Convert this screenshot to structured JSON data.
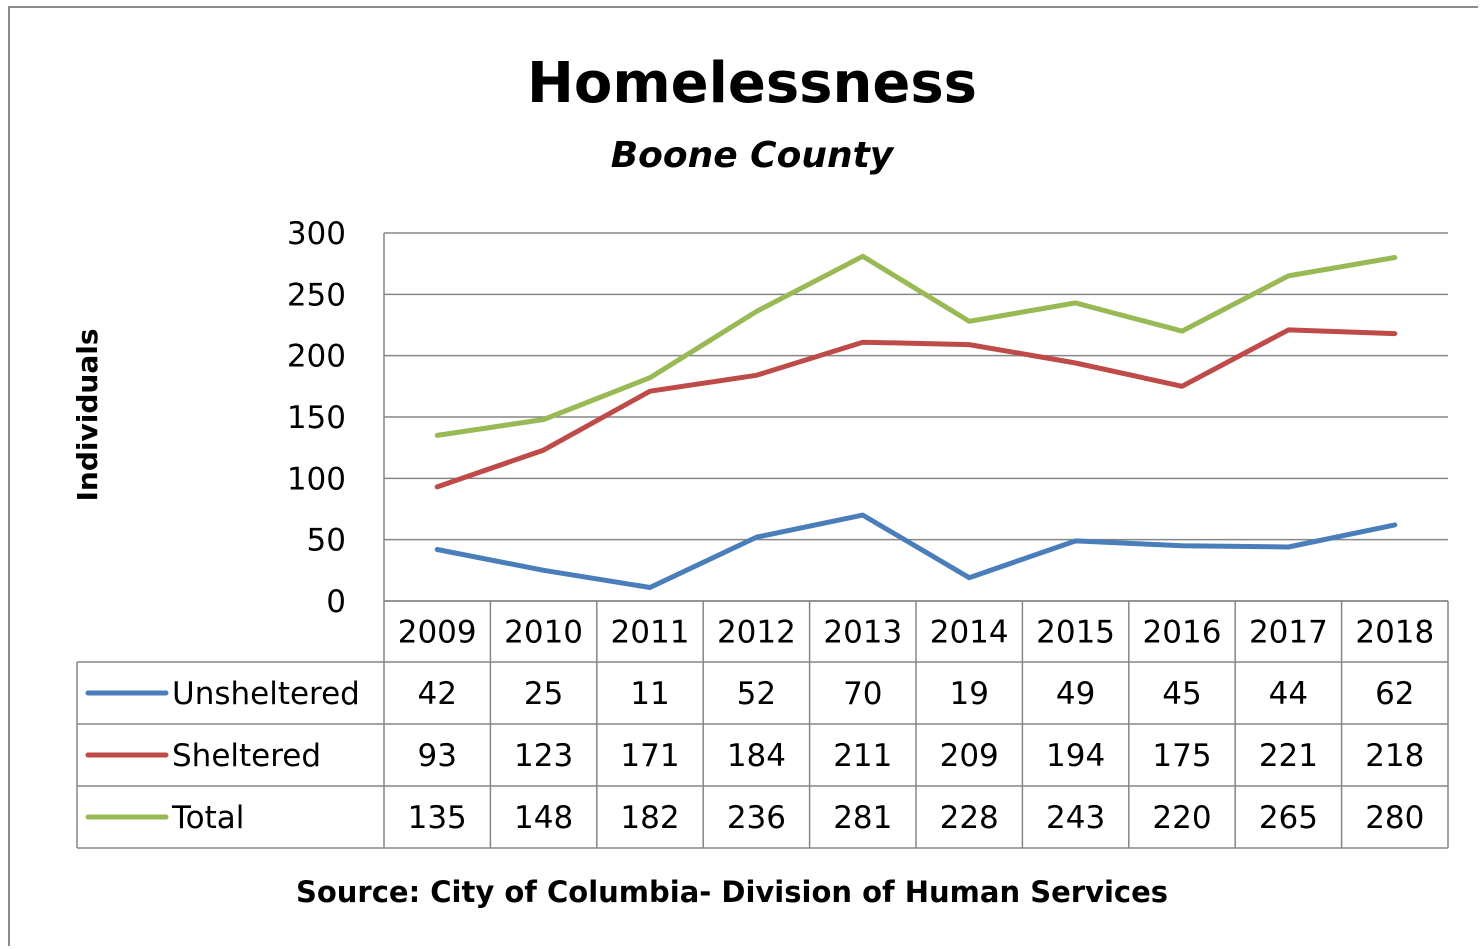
{
  "chart_data": {
    "type": "line",
    "title": "Homelessness",
    "subtitle": "Boone County",
    "ylabel": "Individuals",
    "xlabel": "",
    "ylim": [
      0,
      300
    ],
    "yticks": [
      "0",
      "50",
      "100",
      "150",
      "200",
      "250",
      "300"
    ],
    "grid": true,
    "legend": "data-table",
    "categories": [
      "2009",
      "2010",
      "2011",
      "2012",
      "2013",
      "2014",
      "2015",
      "2016",
      "2017",
      "2018"
    ],
    "series": [
      {
        "name": "Unsheltered",
        "color": "#4a7ebb",
        "values": [
          42,
          25,
          11,
          52,
          70,
          19,
          49,
          45,
          44,
          62
        ]
      },
      {
        "name": "Sheltered",
        "color": "#be4b48",
        "values": [
          93,
          123,
          171,
          184,
          211,
          209,
          194,
          175,
          221,
          218
        ]
      },
      {
        "name": "Total",
        "color": "#98b954",
        "values": [
          135,
          148,
          182,
          236,
          281,
          228,
          243,
          220,
          265,
          280
        ]
      }
    ],
    "source": "Source: City of Columbia- Division of Human Services"
  }
}
